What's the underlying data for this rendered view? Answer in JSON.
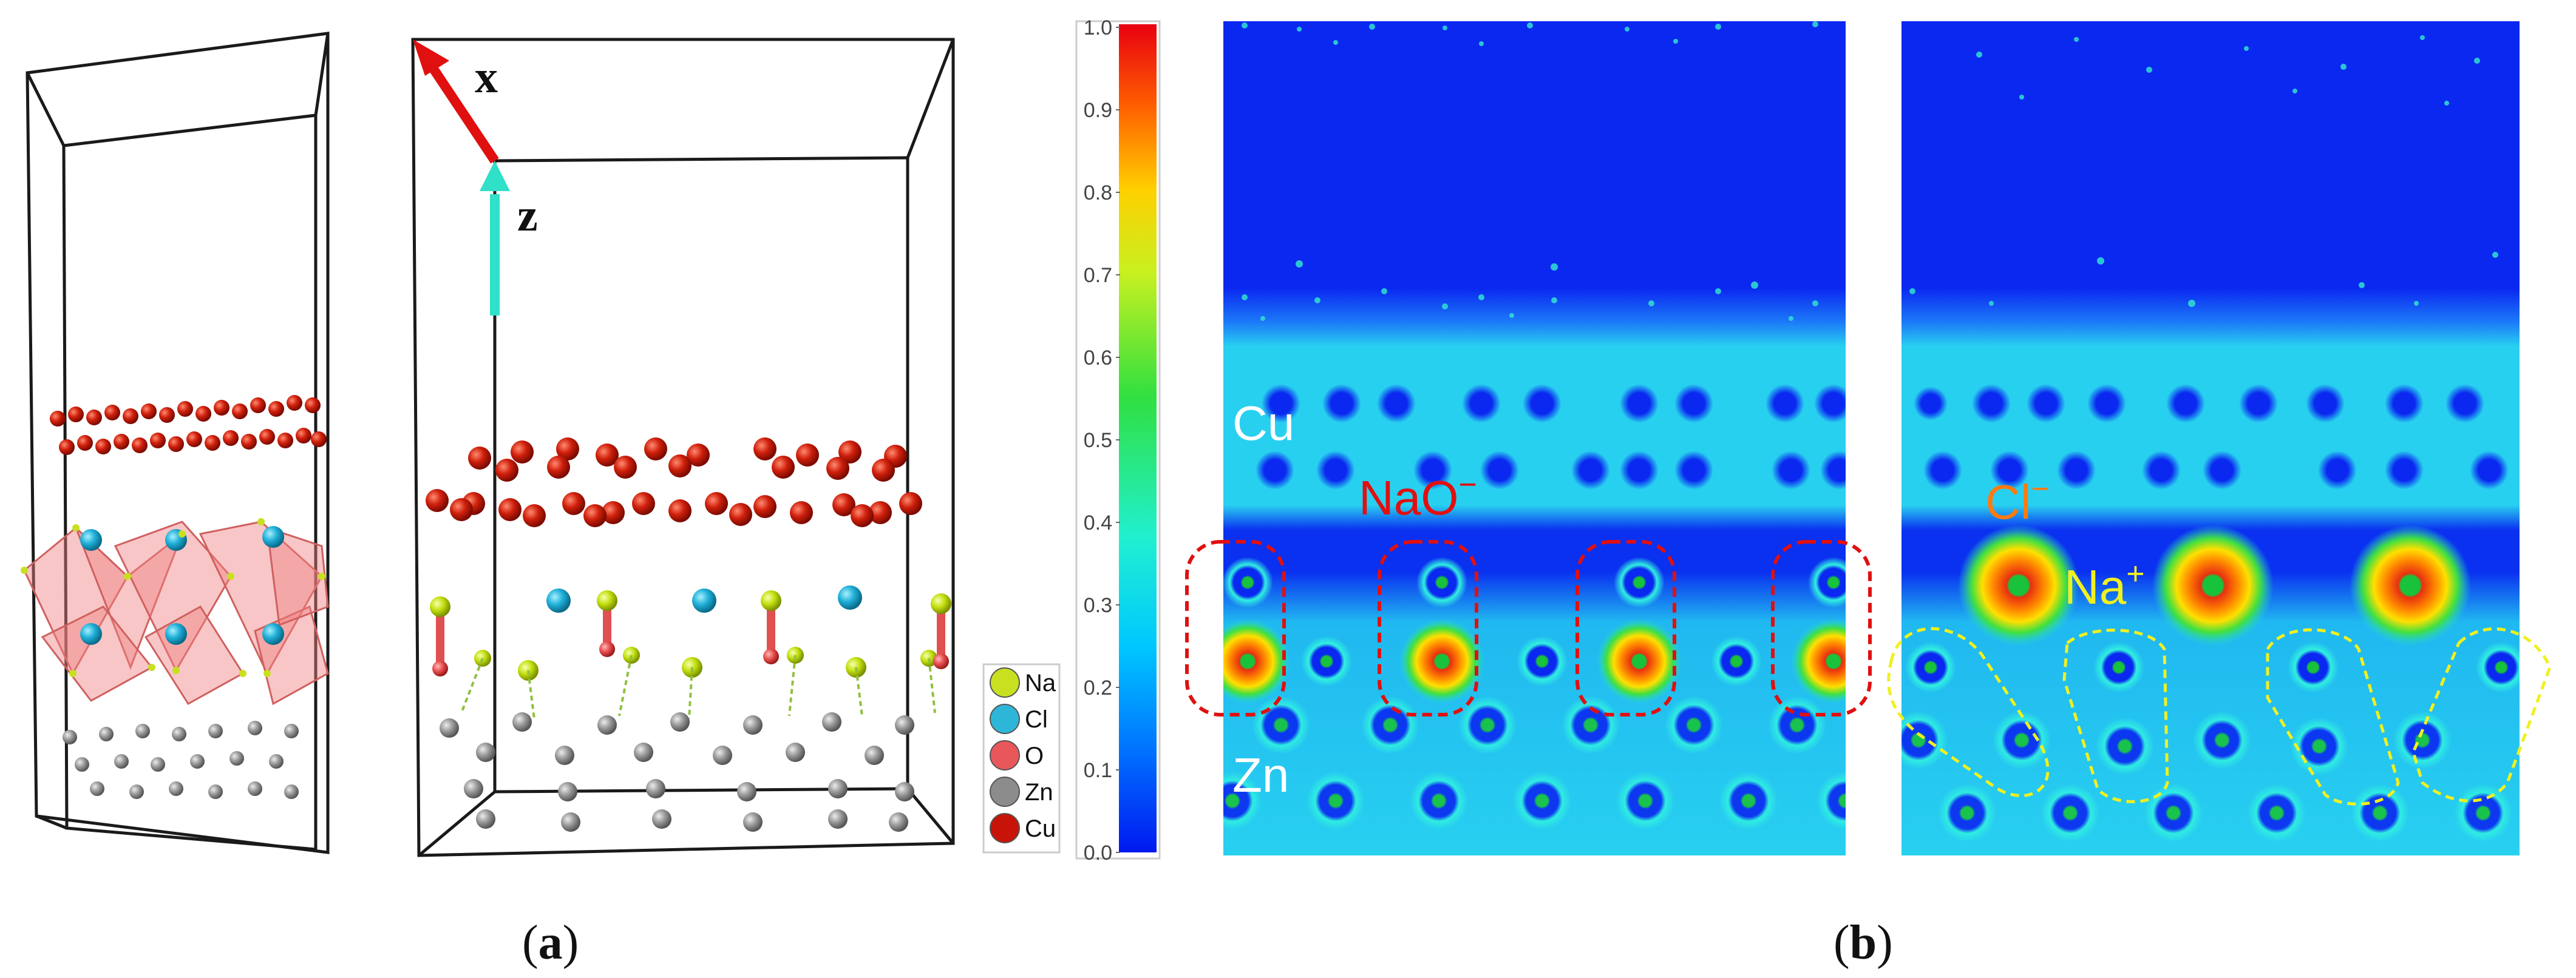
{
  "panel_a": {
    "caption_open": "(",
    "caption_letter": "a",
    "caption_close": ")",
    "axis_x_label": "x",
    "axis_z_label": "z",
    "legend": [
      {
        "symbol": "Na",
        "color": "#c8e020"
      },
      {
        "symbol": "Cl",
        "color": "#2eb6d8"
      },
      {
        "symbol": "O",
        "color": "#e8585a"
      },
      {
        "symbol": "Zn",
        "color": "#8c8c8c"
      },
      {
        "symbol": "Cu",
        "color": "#c81408"
      }
    ]
  },
  "panel_b": {
    "caption_open": "(",
    "caption_letter": "b",
    "caption_close": ")",
    "colorbar_ticks": [
      "1.0",
      "0.9",
      "0.8",
      "0.7",
      "0.6",
      "0.5",
      "0.4",
      "0.3",
      "0.2",
      "0.1",
      "0.0"
    ],
    "labels": {
      "cu": "Cu",
      "zn": "Zn",
      "nao_base": "NaO",
      "nao_sup": "−",
      "cl_base": "Cl",
      "cl_sup": "−",
      "na_base": "Na",
      "na_sup": "+"
    }
  },
  "colors": {
    "background_map": "#0a28f0",
    "cu_label": "#ffffff",
    "nao_label": "#e01010",
    "cl_label": "#ff7a10",
    "na_label": "#f0f020",
    "zn_label": "#ffffff"
  }
}
